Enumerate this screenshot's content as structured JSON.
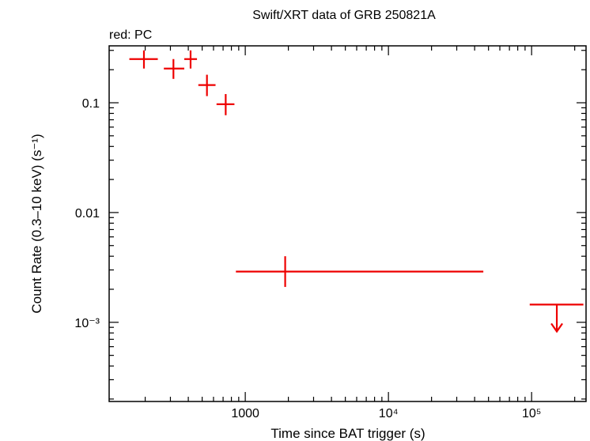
{
  "chart_data": {
    "type": "scatter",
    "title": "Swift/XRT data of GRB 250821A",
    "subtitle": "red: PC",
    "xlabel": "Time since BAT trigger (s)",
    "ylabel": "Count Rate (0.3–10 keV) (s⁻¹)",
    "xscale": "log",
    "yscale": "log",
    "xlim": [
      112,
      240000
    ],
    "ylim": [
      0.00019,
      0.33
    ],
    "x_ticks": [
      {
        "value": 1000,
        "label": "1000"
      },
      {
        "value": 10000,
        "label": "10⁴"
      },
      {
        "value": 100000,
        "label": "10⁵"
      }
    ],
    "y_ticks": [
      {
        "value": 0.1,
        "label": "0.1"
      },
      {
        "value": 0.01,
        "label": "0.01"
      },
      {
        "value": 0.001,
        "label": "10⁻³"
      }
    ],
    "grid": false,
    "series": [
      {
        "color": "#ee0000",
        "points": [
          {
            "x": 196,
            "x_lo": 155,
            "x_hi": 245,
            "y": 0.25,
            "y_lo": 0.205,
            "y_hi": 0.3
          },
          {
            "x": 315,
            "x_lo": 270,
            "x_hi": 375,
            "y": 0.205,
            "y_lo": 0.165,
            "y_hi": 0.25
          },
          {
            "x": 415,
            "x_lo": 375,
            "x_hi": 460,
            "y": 0.25,
            "y_lo": 0.205,
            "y_hi": 0.3
          },
          {
            "x": 540,
            "x_lo": 470,
            "x_hi": 620,
            "y": 0.145,
            "y_lo": 0.115,
            "y_hi": 0.18
          },
          {
            "x": 730,
            "x_lo": 630,
            "x_hi": 840,
            "y": 0.097,
            "y_lo": 0.077,
            "y_hi": 0.12
          },
          {
            "x": 1900,
            "x_lo": 860,
            "x_hi": 46000,
            "y": 0.0029,
            "y_lo": 0.0021,
            "y_hi": 0.004
          }
        ],
        "upper_limits": [
          {
            "x": 150000,
            "x_lo": 97000,
            "x_hi": 230000,
            "y": 0.00145
          }
        ]
      }
    ]
  }
}
